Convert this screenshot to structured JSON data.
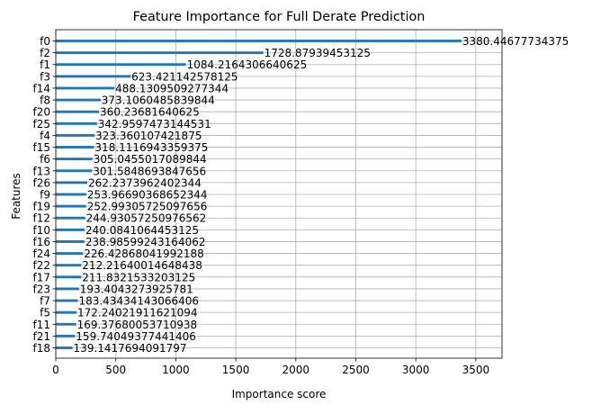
{
  "chart_data": {
    "type": "bar",
    "orientation": "horizontal",
    "title": "Feature Importance for Full Derate Prediction",
    "xlabel": "Importance score",
    "ylabel": "Features",
    "xlim": [
      0,
      3718.49
    ],
    "xticks": [
      0,
      500,
      1000,
      1500,
      2000,
      2500,
      3000,
      3500
    ],
    "grid": true,
    "colors": {
      "bar": "#1f77b4",
      "grid": "#b0b0b0",
      "axis": "#000000"
    },
    "categories": [
      "f0",
      "f2",
      "f1",
      "f3",
      "f14",
      "f8",
      "f20",
      "f25",
      "f4",
      "f15",
      "f6",
      "f13",
      "f26",
      "f9",
      "f19",
      "f12",
      "f10",
      "f16",
      "f24",
      "f22",
      "f17",
      "f23",
      "f7",
      "f5",
      "f11",
      "f21",
      "f18"
    ],
    "values": [
      3380.44677734375,
      1728.87939453125,
      1084.2164306640625,
      623.421142578125,
      488.1309509277344,
      373.1060485839844,
      360.23681640625,
      342.9597473144531,
      323.360107421875,
      318.1116943359375,
      305.0455017089844,
      301.5848693847656,
      262.2373962402344,
      253.96690368652344,
      252.99305725097656,
      244.93057250976562,
      240.0841064453125,
      238.98599243164062,
      226.42868041992188,
      212.21640014648438,
      211.8321533203125,
      193.4043273925781,
      183.43434143066406,
      172.24021911621094,
      169.37680053710938,
      159.74049377441406,
      139.1417694091797
    ],
    "value_labels": [
      "3380.44677734375",
      "1728.87939453125",
      "1084.2164306640625",
      "623.421142578125",
      "488.1309509277344",
      "373.1060485839844",
      "360.23681640625",
      "342.9597473144531",
      "323.360107421875",
      "318.1116943359375",
      "305.0455017089844",
      "301.5848693847656",
      "262.2373962402344",
      "253.96690368652344",
      "252.99305725097656",
      "244.93057250976562",
      "240.0841064453125",
      "238.98599243164062",
      "226.42868041992188",
      "212.21640014648438",
      "211.8321533203125",
      "193.4043273925781",
      "183.43434143066406",
      "172.24021911621094",
      "169.37680053710938",
      "159.74049377441406",
      "139.1417694091797"
    ]
  }
}
